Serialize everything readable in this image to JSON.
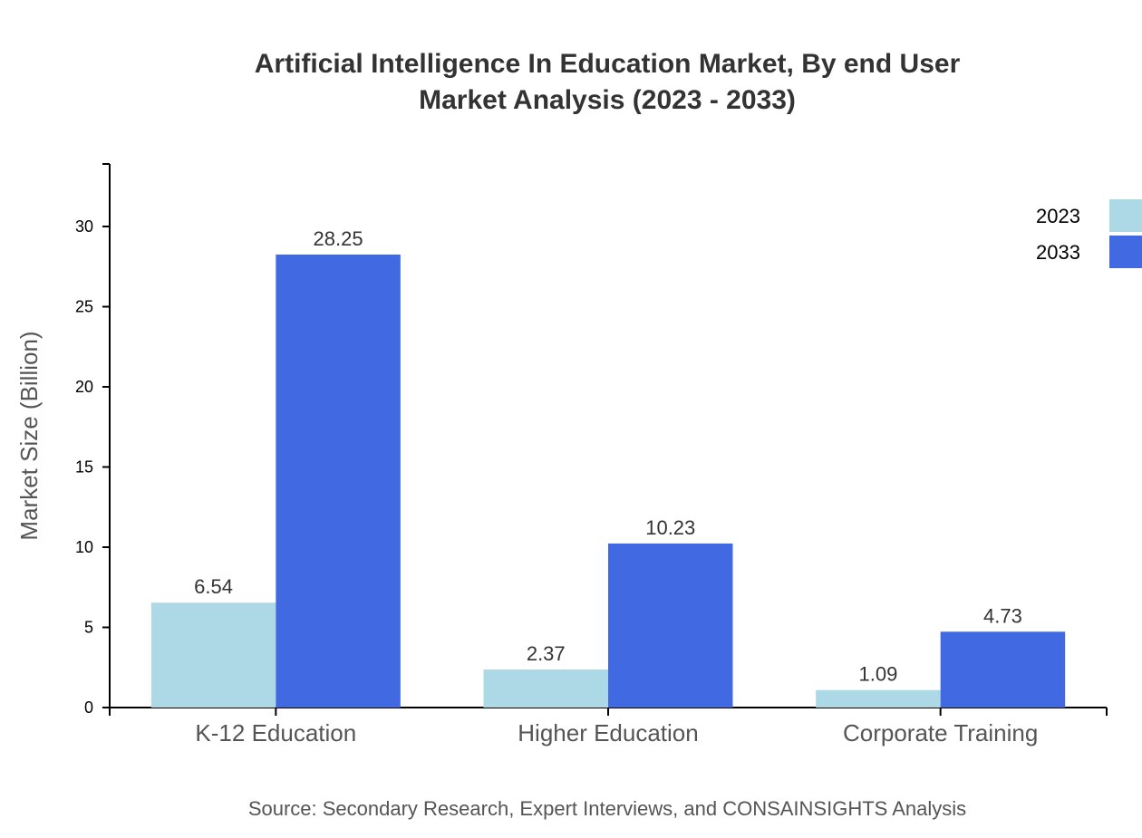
{
  "chart_data": {
    "type": "bar",
    "title": [
      "Artificial Intelligence In Education Market, By end User",
      "Market Analysis (2023 - 2033)"
    ],
    "xlabel": "",
    "ylabel": "Market Size (Billion)",
    "categories": [
      "K-12 Education",
      "Higher Education",
      "Corporate Training"
    ],
    "series": [
      {
        "name": "2023",
        "values": [
          6.54,
          2.37,
          1.09
        ],
        "color": "#add8e6"
      },
      {
        "name": "2033",
        "values": [
          28.25,
          10.23,
          4.73
        ],
        "color": "#4169e1"
      }
    ],
    "ylim": [
      0,
      33.9
    ],
    "yticks": [
      0,
      5,
      10,
      15,
      20,
      25,
      30
    ],
    "grid": false,
    "legend": "top-right",
    "source": "Source: Secondary Research, Expert Interviews, and CONSAINSIGHTS Analysis"
  }
}
